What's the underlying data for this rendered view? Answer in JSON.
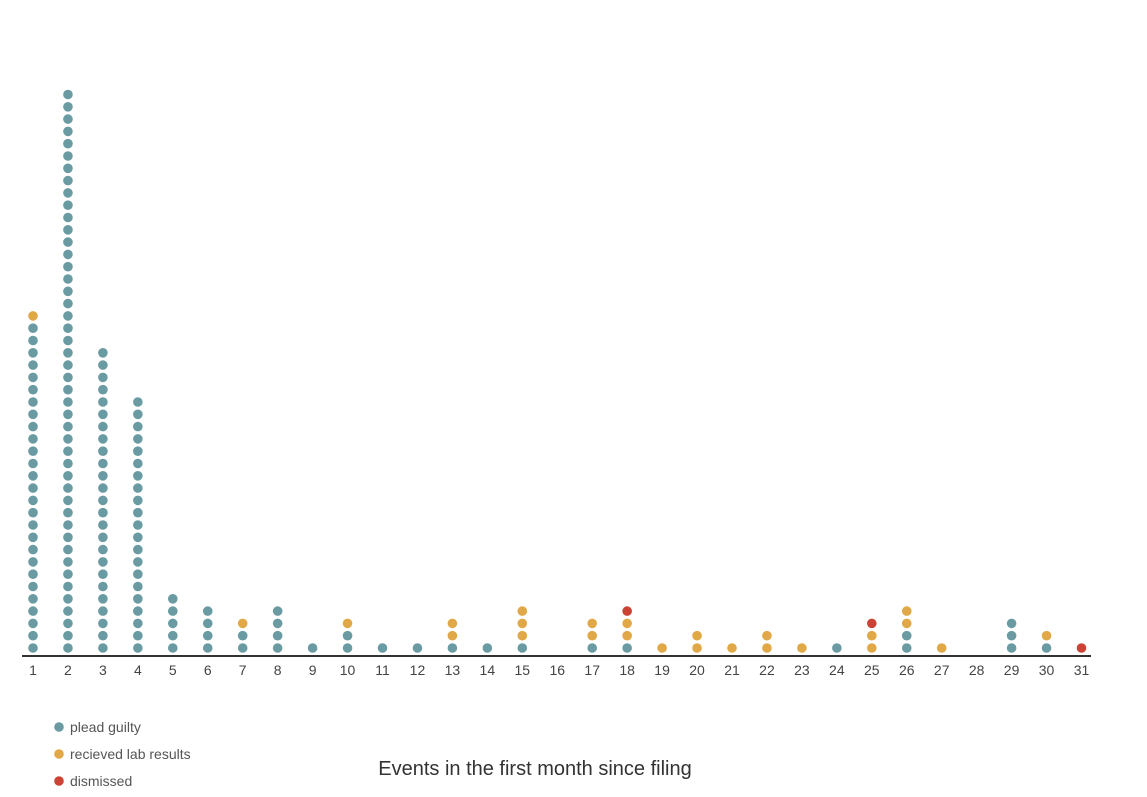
{
  "chart_data": {
    "type": "scatter",
    "subtype": "stacked-dot",
    "title": "",
    "xlabel": "Events in the first month since filing",
    "ylabel": "",
    "x": [
      1,
      2,
      3,
      4,
      5,
      6,
      7,
      8,
      9,
      10,
      11,
      12,
      13,
      14,
      15,
      16,
      17,
      18,
      19,
      20,
      21,
      22,
      23,
      24,
      25,
      26,
      27,
      28,
      29,
      30,
      31
    ],
    "xlim": [
      1,
      31
    ],
    "grid": false,
    "legend_position": "bottom-left",
    "series": [
      {
        "name": "plead guilty",
        "color": "#6a9ba3",
        "values": [
          27,
          46,
          25,
          21,
          5,
          4,
          2,
          4,
          1,
          2,
          1,
          1,
          1,
          1,
          1,
          0,
          1,
          1,
          0,
          0,
          0,
          0,
          0,
          1,
          0,
          2,
          0,
          0,
          3,
          1,
          0
        ]
      },
      {
        "name": "recieved lab results",
        "color": "#e0a846",
        "values": [
          1,
          0,
          0,
          0,
          0,
          0,
          1,
          0,
          0,
          1,
          0,
          0,
          2,
          0,
          3,
          0,
          2,
          2,
          1,
          2,
          1,
          2,
          1,
          0,
          2,
          2,
          1,
          0,
          0,
          1,
          0
        ]
      },
      {
        "name": "dismissed",
        "color": "#cc4335",
        "values": [
          0,
          0,
          0,
          0,
          0,
          0,
          0,
          0,
          0,
          0,
          0,
          0,
          0,
          0,
          0,
          0,
          0,
          1,
          0,
          0,
          0,
          0,
          0,
          0,
          1,
          0,
          0,
          0,
          0,
          0,
          1
        ]
      }
    ],
    "axis_color": "#333333"
  }
}
